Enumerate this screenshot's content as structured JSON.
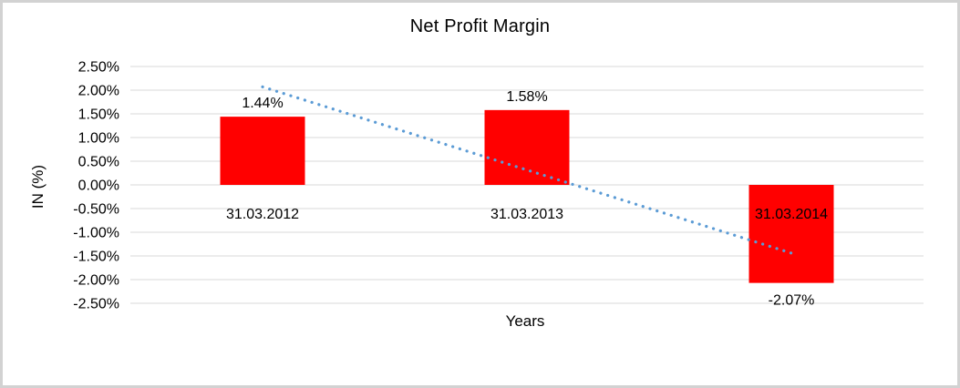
{
  "chart_data": {
    "type": "bar",
    "title": "Net Profit Margin",
    "xlabel": "Years",
    "ylabel": "IN (%)",
    "categories": [
      "31.03.2012",
      "31.03.2013",
      "31.03.2014"
    ],
    "values": [
      1.44,
      1.58,
      -2.07
    ],
    "data_labels": [
      "1.44%",
      "1.58%",
      "-2.07%"
    ],
    "y_ticks": [
      2.5,
      2.0,
      1.5,
      1.0,
      0.5,
      0.0,
      -0.5,
      -1.0,
      -1.5,
      -2.0,
      -2.5
    ],
    "y_tick_labels": [
      "2.50%",
      "2.00%",
      "1.50%",
      "1.00%",
      "0.50%",
      "0.00%",
      "-0.50%",
      "-1.00%",
      "-1.50%",
      "-2.00%",
      "-2.50%"
    ],
    "ylim": [
      -2.5,
      2.5
    ],
    "grid": "horizontal",
    "legend": "none",
    "bar_color": "#ff0000",
    "gridline_color": "#d9d9d9",
    "text_color": "#000000",
    "trendline": {
      "type": "linear",
      "style": "dotted",
      "color": "#5b9bd5",
      "start_value": 2.07,
      "end_value": -1.44
    }
  }
}
